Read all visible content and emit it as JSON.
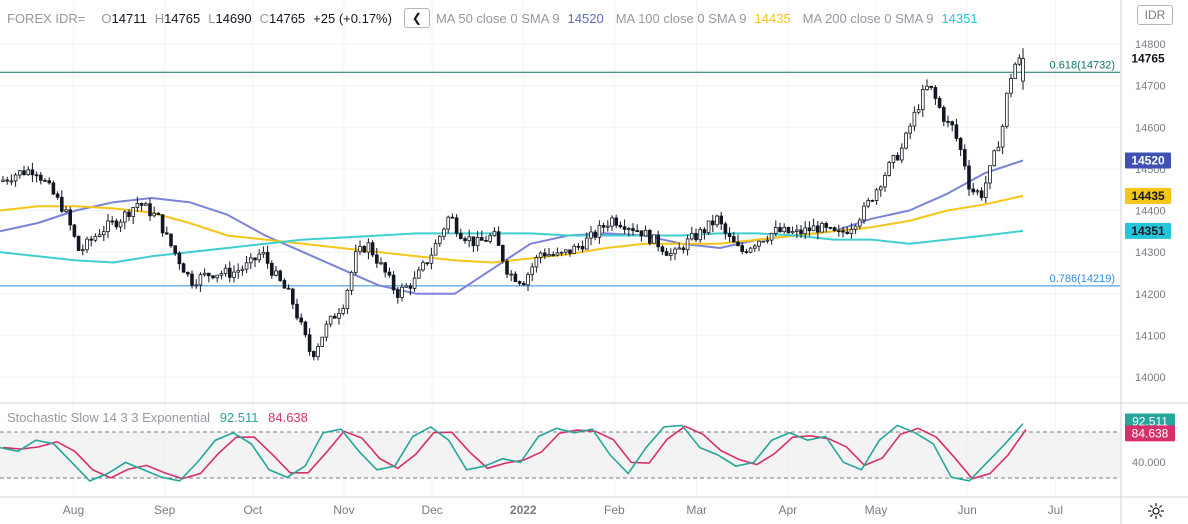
{
  "symbol": "FOREX IDR=",
  "ohlc": {
    "o_label": "O",
    "open": "14711",
    "h_label": "H",
    "high": "14765",
    "l_label": "L",
    "low": "14690",
    "c_label": "C",
    "close": "14765",
    "change": "+25 (+0.17%)"
  },
  "indicators": [
    {
      "name": "MA 50 close 0 SMA 9",
      "value": "14520",
      "color": "#7b83d8"
    },
    {
      "name": "MA 100 close 0 SMA 9",
      "value": "14435",
      "color": "#f5c518"
    },
    {
      "name": "MA 200 close 0 SMA 9",
      "value": "14351",
      "color": "#3fcfcf"
    }
  ],
  "currency_button": "IDR",
  "stochastic": {
    "name": "Stochastic Slow 14 3 3 Exponential",
    "k_value": "92.511",
    "d_value": "84.638",
    "k_color": "#26a69a",
    "d_color": "#d6306b",
    "tick_label": "40.000"
  },
  "fib_levels": [
    {
      "label": "0.618(14732)",
      "value": 14732,
      "color": "#13706b"
    },
    {
      "label": "0.786(14219)",
      "value": 14219,
      "color": "#2f8de0"
    }
  ],
  "price_badges": [
    {
      "label": "14765",
      "value": 14765,
      "bg": "#ffffff",
      "fg": "#131722"
    },
    {
      "label": "14520",
      "value": 14520,
      "bg": "#3f51b5",
      "fg": "#ffffff"
    },
    {
      "label": "14435",
      "value": 14435,
      "bg": "#f5c518",
      "fg": "#131722"
    },
    {
      "label": "14351",
      "value": 14351,
      "bg": "#26c6da",
      "fg": "#131722"
    }
  ],
  "stoch_badges": [
    {
      "label": "92.511",
      "bg": "#26a69a",
      "fg": "#ffffff"
    },
    {
      "label": "84.638",
      "bg": "#d6306b",
      "fg": "#ffffff"
    }
  ],
  "chart_data": {
    "type": "candlestick",
    "interval": "daily",
    "y_axis": {
      "ticks": [
        "14800",
        "14700",
        "14600",
        "14500",
        "14400",
        "14300",
        "14200",
        "14100",
        "14000"
      ],
      "range": [
        13940,
        14840
      ]
    },
    "x_axis": {
      "ticks": [
        "Aug",
        "Sep",
        "Oct",
        "Nov",
        "Dec",
        "2022",
        "Feb",
        "Mar",
        "Apr",
        "May",
        "Jun",
        "Jul"
      ],
      "tick_dates": [
        "2021-08-01",
        "2021-09-01",
        "2021-10-01",
        "2021-11-01",
        "2021-12-01",
        "2022-01-01",
        "2022-02-01",
        "2022-03-01",
        "2022-04-01",
        "2022-05-01",
        "2022-06-01",
        "2022-07-01"
      ],
      "range": [
        "2021-07-07",
        "2022-07-23"
      ]
    },
    "close_anchors": [
      [
        "2021-07-07",
        14470
      ],
      [
        "2021-07-13",
        14490
      ],
      [
        "2021-07-19",
        14500
      ],
      [
        "2021-07-23",
        14460
      ],
      [
        "2021-07-29",
        14400
      ],
      [
        "2021-08-03",
        14300
      ],
      [
        "2021-08-10",
        14350
      ],
      [
        "2021-08-17",
        14380
      ],
      [
        "2021-08-23",
        14420
      ],
      [
        "2021-08-30",
        14380
      ],
      [
        "2021-09-02",
        14330
      ],
      [
        "2021-09-06",
        14280
      ],
      [
        "2021-09-10",
        14230
      ],
      [
        "2021-09-17",
        14250
      ],
      [
        "2021-09-24",
        14250
      ],
      [
        "2021-09-30",
        14270
      ],
      [
        "2021-10-04",
        14300
      ],
      [
        "2021-10-08",
        14250
      ],
      [
        "2021-10-14",
        14190
      ],
      [
        "2021-10-18",
        14110
      ],
      [
        "2021-10-21",
        14050
      ],
      [
        "2021-10-26",
        14120
      ],
      [
        "2021-11-01",
        14180
      ],
      [
        "2021-11-05",
        14290
      ],
      [
        "2021-11-09",
        14320
      ],
      [
        "2021-11-15",
        14250
      ],
      [
        "2021-11-19",
        14200
      ],
      [
        "2021-11-25",
        14230
      ],
      [
        "2021-12-01",
        14300
      ],
      [
        "2021-12-07",
        14390
      ],
      [
        "2021-12-10",
        14350
      ],
      [
        "2021-12-16",
        14320
      ],
      [
        "2021-12-22",
        14340
      ],
      [
        "2021-12-27",
        14250
      ],
      [
        "2022-01-01",
        14230
      ],
      [
        "2022-01-07",
        14300
      ],
      [
        "2022-01-13",
        14290
      ],
      [
        "2022-01-19",
        14310
      ],
      [
        "2022-01-25",
        14340
      ],
      [
        "2022-01-31",
        14380
      ],
      [
        "2022-02-04",
        14370
      ],
      [
        "2022-02-10",
        14350
      ],
      [
        "2022-02-16",
        14320
      ],
      [
        "2022-02-21",
        14290
      ],
      [
        "2022-02-25",
        14320
      ],
      [
        "2022-03-03",
        14350
      ],
      [
        "2022-03-08",
        14380
      ],
      [
        "2022-03-11",
        14340
      ],
      [
        "2022-03-16",
        14300
      ],
      [
        "2022-03-22",
        14330
      ],
      [
        "2022-03-28",
        14350
      ],
      [
        "2022-04-04",
        14345
      ],
      [
        "2022-04-11",
        14360
      ],
      [
        "2022-04-18",
        14340
      ],
      [
        "2022-04-22",
        14360
      ],
      [
        "2022-04-27",
        14400
      ],
      [
        "2022-05-01",
        14450
      ],
      [
        "2022-05-05",
        14500
      ],
      [
        "2022-05-10",
        14550
      ],
      [
        "2022-05-13",
        14610
      ],
      [
        "2022-05-17",
        14680
      ],
      [
        "2022-05-19",
        14700
      ],
      [
        "2022-05-23",
        14640
      ],
      [
        "2022-05-25",
        14610
      ],
      [
        "2022-05-27",
        14600
      ],
      [
        "2022-05-31",
        14520
      ],
      [
        "2022-06-02",
        14450
      ],
      [
        "2022-06-06",
        14440
      ],
      [
        "2022-06-09",
        14500
      ],
      [
        "2022-06-13",
        14600
      ],
      [
        "2022-06-15",
        14700
      ],
      [
        "2022-06-17",
        14750
      ],
      [
        "2022-06-20",
        14765
      ]
    ],
    "series": [
      {
        "name": "MA 50 close 0 SMA 9",
        "values": [
          14350,
          14370,
          14400,
          14420,
          14430,
          14420,
          14390,
          14340,
          14300,
          14260,
          14220,
          14200,
          14200,
          14260,
          14320,
          14340,
          14345,
          14340,
          14320,
          14310,
          14330,
          14340,
          14350,
          14380,
          14400,
          14440,
          14490,
          14520
        ]
      },
      {
        "name": "MA 100 close 0 SMA 9",
        "values": [
          14400,
          14410,
          14410,
          14405,
          14395,
          14370,
          14340,
          14330,
          14320,
          14310,
          14300,
          14290,
          14280,
          14275,
          14285,
          14295,
          14310,
          14320,
          14320,
          14320,
          14330,
          14340,
          14350,
          14360,
          14375,
          14400,
          14415,
          14435
        ]
      },
      {
        "name": "MA 200 close 0 SMA 9",
        "values": [
          14300,
          14290,
          14280,
          14275,
          14290,
          14300,
          14310,
          14320,
          14330,
          14335,
          14340,
          14345,
          14345,
          14345,
          14345,
          14340,
          14340,
          14340,
          14340,
          14345,
          14345,
          14340,
          14330,
          14330,
          14320,
          14330,
          14340,
          14351
        ]
      }
    ],
    "stochastic": {
      "ylim": [
        0,
        100
      ],
      "upper_band": 80,
      "lower_band": 20,
      "k_points": [
        60,
        55,
        70,
        65,
        40,
        15,
        25,
        40,
        30,
        20,
        15,
        40,
        70,
        80,
        65,
        30,
        20,
        35,
        80,
        85,
        55,
        30,
        35,
        75,
        88,
        70,
        30,
        35,
        45,
        40,
        75,
        86,
        80,
        85,
        50,
        25,
        60,
        88,
        90,
        60,
        50,
        35,
        40,
        70,
        80,
        70,
        75,
        40,
        30,
        70,
        90,
        80,
        65,
        20,
        15,
        40,
        65,
        92.5
      ]
    }
  }
}
